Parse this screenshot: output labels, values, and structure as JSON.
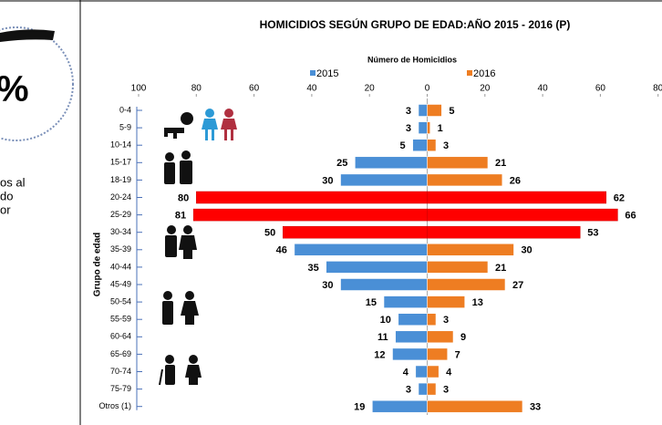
{
  "left_panel": {
    "symbol": "%",
    "text_lines": [
      "os al",
      "do",
      "or"
    ]
  },
  "chart_data": {
    "type": "pyramid",
    "title": "HOMICIDIOS  SEGÚN GRUPO DE EDAD:AÑO 2015 - 2016 (P)",
    "x_label": "Número de Homicidios",
    "y_label": "Grupo de edad",
    "categories": [
      "0-4",
      "5-9",
      "10-14",
      "15-17",
      "18-19",
      "20-24",
      "25-29",
      "30-34",
      "35-39",
      "40-44",
      "45-49",
      "50-54",
      "55-59",
      "60-64",
      "65-69",
      "70-74",
      "75-79",
      "Otros (1)"
    ],
    "series": [
      {
        "name": "2015",
        "color": "#4a8fd6",
        "values": [
          3,
          3,
          5,
          25,
          30,
          80,
          81,
          50,
          46,
          35,
          30,
          15,
          10,
          11,
          12,
          4,
          3,
          19
        ]
      },
      {
        "name": "2016",
        "color": "#ee7d22",
        "values": [
          5,
          1,
          3,
          21,
          26,
          62,
          66,
          53,
          30,
          21,
          27,
          13,
          3,
          9,
          7,
          4,
          3,
          33
        ]
      }
    ],
    "highlight": {
      "color": "#ff0000",
      "categories": [
        "20-24",
        "25-29",
        "30-34"
      ]
    },
    "xlim": [
      -100,
      100
    ],
    "xticks": [
      {
        "value": -100,
        "label": "100"
      },
      {
        "value": -80,
        "label": "80"
      },
      {
        "value": -60,
        "label": "60"
      },
      {
        "value": -40,
        "label": "40"
      },
      {
        "value": -20,
        "label": "20"
      },
      0,
      20,
      40,
      60,
      80
    ],
    "legend": "top"
  }
}
